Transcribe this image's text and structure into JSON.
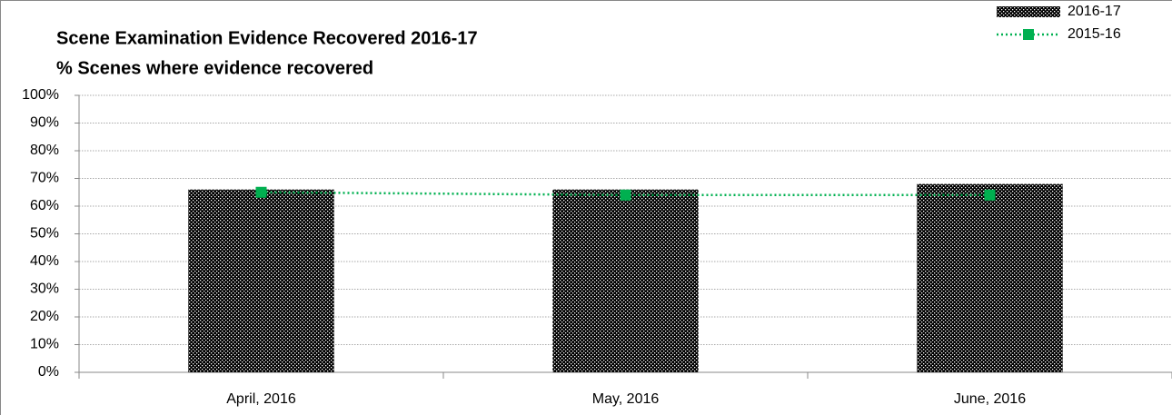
{
  "chart_data": {
    "type": "bar",
    "title": "Scene Examination Evidence Recovered 2016-17",
    "subtitle": "% Scenes where evidence recovered",
    "categories": [
      "April, 2016",
      "May, 2016",
      "June, 2016"
    ],
    "series": [
      {
        "name": "2016-17",
        "type": "bar",
        "color": "#cc0000",
        "values": [
          66,
          66,
          68
        ]
      },
      {
        "name": "2015-16",
        "type": "line",
        "color": "#00b050",
        "values": [
          65,
          64,
          64
        ]
      }
    ],
    "ylim": [
      0,
      100
    ],
    "yticks": [
      {
        "value": 0,
        "label": "0%"
      },
      {
        "value": 10,
        "label": "10%"
      },
      {
        "value": 20,
        "label": "20%"
      },
      {
        "value": 30,
        "label": "30%"
      },
      {
        "value": 40,
        "label": "40%"
      },
      {
        "value": 50,
        "label": "50%"
      },
      {
        "value": 60,
        "label": "60%"
      },
      {
        "value": 70,
        "label": "70%"
      },
      {
        "value": 80,
        "label": "80%"
      },
      {
        "value": 90,
        "label": "90%"
      },
      {
        "value": 100,
        "label": "100%"
      }
    ],
    "grid": true,
    "legend": "top-right"
  }
}
